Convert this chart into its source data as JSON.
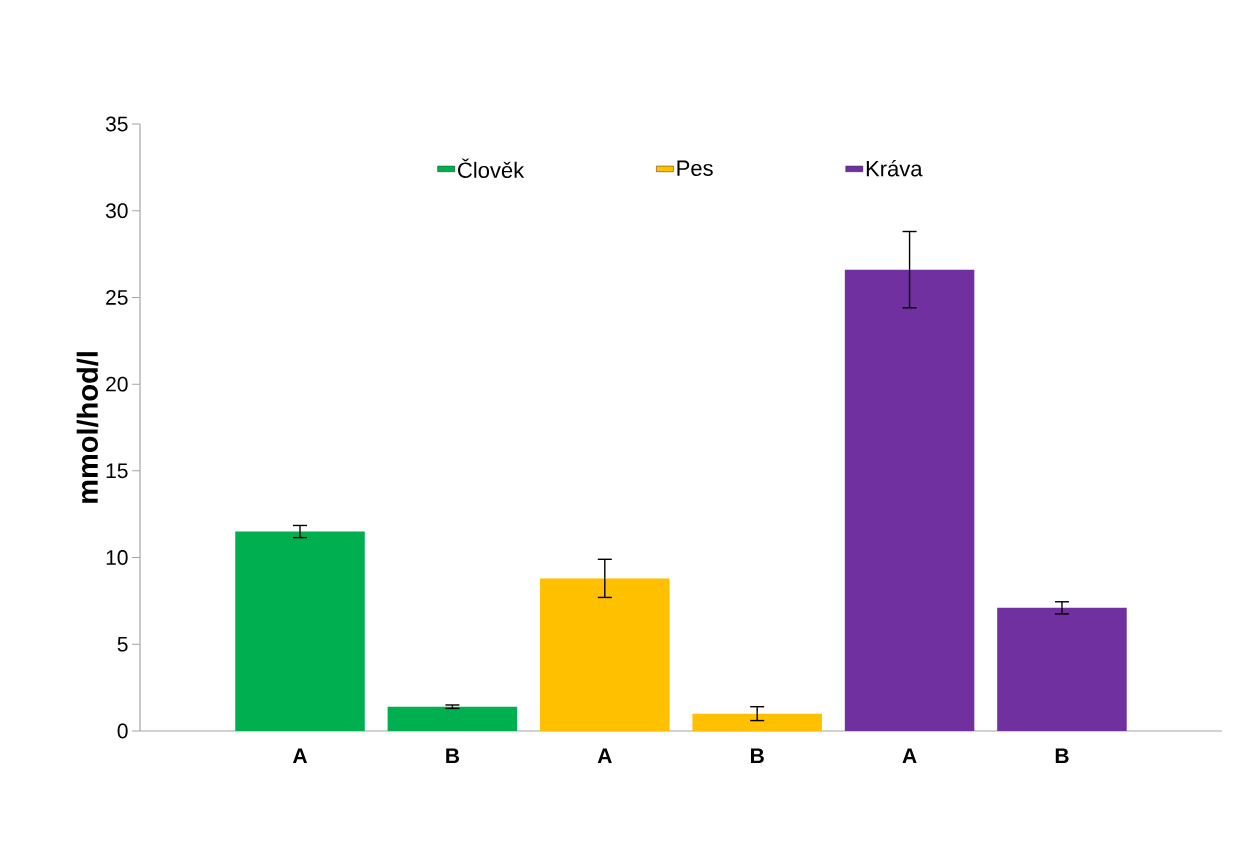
{
  "chart_data": {
    "type": "bar",
    "ylabel": "mmol/hod/l",
    "categories": [
      "A",
      "B",
      "A",
      "B",
      "A",
      "B"
    ],
    "series": [
      {
        "name": "Člověk",
        "color": "#00b050",
        "values": [
          11.5,
          1.4,
          null,
          null,
          null,
          null
        ],
        "errors": [
          0.35,
          0.1,
          null,
          null,
          null,
          null
        ]
      },
      {
        "name": "Pes",
        "color": "#ffc000",
        "values": [
          null,
          null,
          8.8,
          1.0,
          null,
          null
        ],
        "errors": [
          null,
          null,
          1.1,
          0.4,
          null,
          null
        ]
      },
      {
        "name": "Kráva",
        "color": "#7030a0",
        "values": [
          null,
          null,
          null,
          null,
          26.6,
          7.1
        ],
        "errors": [
          null,
          null,
          null,
          null,
          2.2,
          0.35
        ]
      }
    ],
    "ylim": [
      0,
      35
    ],
    "yticks": [
      0,
      5,
      10,
      15,
      20,
      25,
      30,
      35
    ],
    "legend": "top",
    "grid": false
  }
}
